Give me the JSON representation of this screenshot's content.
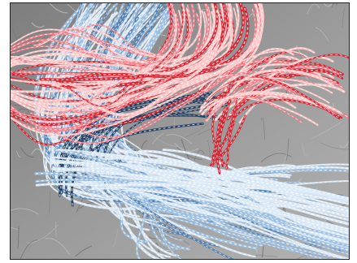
{
  "map": {
    "basemap_style": "grayscale",
    "layer": "flow-trajectories-3d",
    "colors": {
      "cool_light": "#dbe9f6",
      "cool_mid": "#9dbfe0",
      "cool_dark": "#4f7fb0",
      "cool_deep": "#1f3b5c",
      "warm_light": "#ffc9c9",
      "warm_mid": "#f57f8a",
      "warm_dark": "#d8202e",
      "dash": "#ffffff"
    }
  }
}
